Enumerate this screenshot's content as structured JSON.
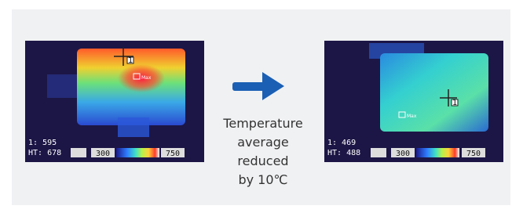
{
  "left_image": {
    "reading_1": "1: 595",
    "reading_ht": "HT: 678",
    "scale_min": "300",
    "scale_max": "750",
    "max_marker": "Max",
    "cursor_label": "1"
  },
  "caption": [
    "Temperature",
    "average",
    "reduced",
    "by 10℃"
  ],
  "right_image": {
    "reading_1": "1: 469",
    "reading_ht": "HT: 488",
    "scale_min": "300",
    "scale_max": "750",
    "max_marker": "Max",
    "cursor_label": "1"
  }
}
